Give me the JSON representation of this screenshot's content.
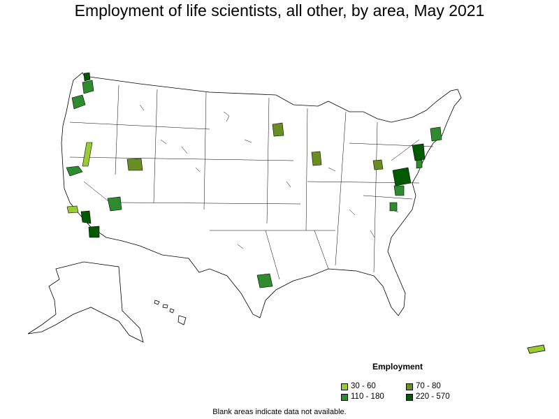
{
  "title": "Employment of life scientists, all other, by area, May 2021",
  "legend": {
    "title": "Employment",
    "items": [
      {
        "range": "30 - 60",
        "color": "#99cc33"
      },
      {
        "range": "70 - 80",
        "color": "#6b8e23"
      },
      {
        "range": "110 - 180",
        "color": "#2e8b2e"
      },
      {
        "range": "220 - 570",
        "color": "#005a00"
      }
    ]
  },
  "footnote": "Blank areas indicate data not available.",
  "highlighted_areas": [
    {
      "region": "Seattle area, WA",
      "class": "110 - 180"
    },
    {
      "region": "Northern Washington",
      "class": "220 - 570"
    },
    {
      "region": "Portland area, OR",
      "class": "110 - 180"
    },
    {
      "region": "Northern Nevada",
      "class": "30 - 60"
    },
    {
      "region": "San Francisco Bay area, CA",
      "class": "110 - 180"
    },
    {
      "region": "Los Angeles area, CA",
      "class": "30 - 60"
    },
    {
      "region": "Riverside area, CA",
      "class": "220 - 570"
    },
    {
      "region": "San Diego area, CA",
      "class": "220 - 570"
    },
    {
      "region": "Salt Lake City area, UT",
      "class": "70 - 80"
    },
    {
      "region": "Phoenix area, AZ",
      "class": "110 - 180"
    },
    {
      "region": "Minneapolis area, MN",
      "class": "70 - 80"
    },
    {
      "region": "Illinois area",
      "class": "70 - 80"
    },
    {
      "region": "Ohio area",
      "class": "70 - 80"
    },
    {
      "region": "Houston area, TX",
      "class": "110 - 180"
    },
    {
      "region": "Washington DC / Baltimore area",
      "class": "220 - 570"
    },
    {
      "region": "Richmond area, VA",
      "class": "110 - 180"
    },
    {
      "region": "New York / New Jersey area",
      "class": "220 - 570"
    },
    {
      "region": "Boston area, MA",
      "class": "110 - 180"
    },
    {
      "region": "Puerto Rico",
      "class": "30 - 60"
    }
  ]
}
